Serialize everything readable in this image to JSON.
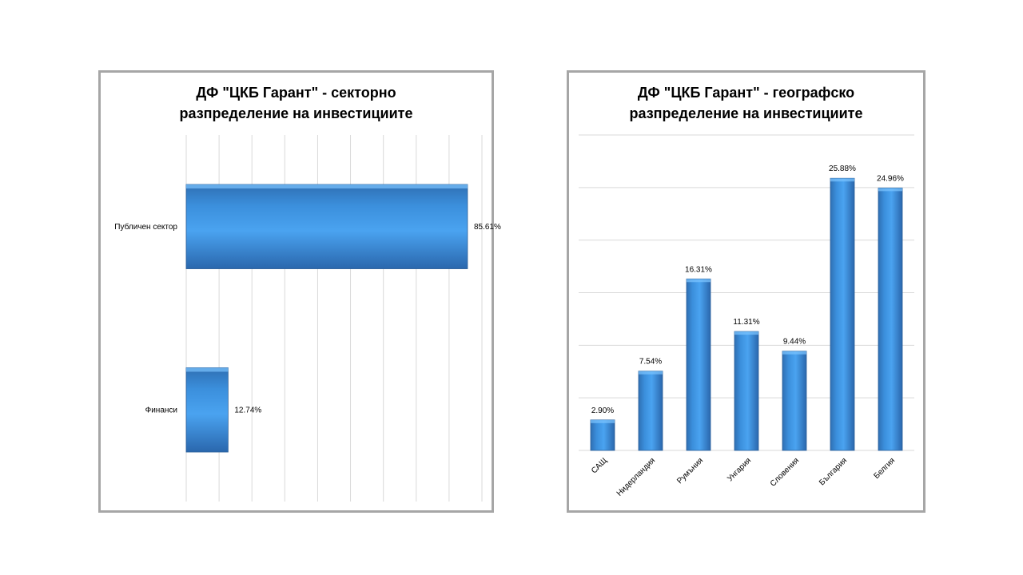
{
  "chart_data": [
    {
      "type": "bar",
      "orientation": "horizontal",
      "title_line1": "ДФ \"ЦКБ Гарант\" - секторно",
      "title_line2": "разпределение на инвестициите",
      "categories": [
        "Публичен сектор",
        "Финанси"
      ],
      "values": [
        85.61,
        12.74
      ],
      "value_labels": [
        "85.61%",
        "12.74%"
      ],
      "xlim": [
        0,
        90
      ],
      "grid": true,
      "legend": "none",
      "bar_color": "#3b8fdc"
    },
    {
      "type": "bar",
      "orientation": "vertical",
      "title_line1": "ДФ \"ЦКБ Гарант\" - географско",
      "title_line2": "разпределение на инвестициите",
      "categories": [
        "САЩ",
        "Нидерландия",
        "Румъния",
        "Унгария",
        "Словения",
        "България",
        "Белгия"
      ],
      "values": [
        2.9,
        7.54,
        16.31,
        11.31,
        9.44,
        25.88,
        24.96
      ],
      "value_labels": [
        "2.90%",
        "7.54%",
        "16.31%",
        "11.31%",
        "9.44%",
        "25.88%",
        "24.96%"
      ],
      "ylim": [
        0,
        30
      ],
      "grid": true,
      "legend": "none",
      "bar_color": "#3b8fdc"
    }
  ]
}
